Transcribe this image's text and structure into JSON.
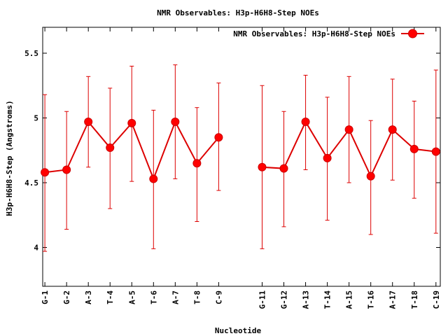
{
  "chart_data": {
    "type": "line",
    "title": "NMR Observables: H3p-H6H8-Step NOEs",
    "xlabel": "Nucleotide",
    "ylabel": "H3p-H6H8-Step (Angstroms)",
    "ylim": [
      3.7,
      5.7
    ],
    "yticks": [
      "4",
      "4.5",
      "5",
      "5.5"
    ],
    "xlim": [
      0.9,
      19.2
    ],
    "legend_position": "top-right",
    "grid": false,
    "categories": [
      "G-1",
      "G-2",
      "A-3",
      "T-4",
      "A-5",
      "T-6",
      "A-7",
      "T-8",
      "C-9",
      "G-11",
      "G-12",
      "A-13",
      "T-14",
      "A-15",
      "T-16",
      "A-17",
      "T-18",
      "C-19"
    ],
    "series": [
      {
        "name": "NMR Observables: H3p-H6H8-Step NOEs",
        "color": "#dd0000",
        "segments": [
          [
            {
              "x": 1,
              "y": 4.58,
              "err_low": 3.97,
              "err_high": 5.18
            },
            {
              "x": 2,
              "y": 4.6,
              "err_low": 4.14,
              "err_high": 5.05
            },
            {
              "x": 3,
              "y": 4.97,
              "err_low": 4.62,
              "err_high": 5.32
            },
            {
              "x": 4,
              "y": 4.77,
              "err_low": 4.3,
              "err_high": 5.23
            },
            {
              "x": 5,
              "y": 4.96,
              "err_low": 4.51,
              "err_high": 5.4
            },
            {
              "x": 6,
              "y": 4.53,
              "err_low": 3.99,
              "err_high": 5.06
            },
            {
              "x": 7,
              "y": 4.97,
              "err_low": 4.53,
              "err_high": 5.41
            },
            {
              "x": 8,
              "y": 4.65,
              "err_low": 4.2,
              "err_high": 5.08
            },
            {
              "x": 9,
              "y": 4.85,
              "err_low": 4.44,
              "err_high": 5.27
            }
          ],
          [
            {
              "x": 11,
              "y": 4.62,
              "err_low": 3.99,
              "err_high": 5.25
            },
            {
              "x": 12,
              "y": 4.61,
              "err_low": 4.16,
              "err_high": 5.05
            },
            {
              "x": 13,
              "y": 4.97,
              "err_low": 4.6,
              "err_high": 5.33
            },
            {
              "x": 14,
              "y": 4.69,
              "err_low": 4.21,
              "err_high": 5.16
            },
            {
              "x": 15,
              "y": 4.91,
              "err_low": 4.5,
              "err_high": 5.32
            },
            {
              "x": 16,
              "y": 4.55,
              "err_low": 4.1,
              "err_high": 4.98
            },
            {
              "x": 17,
              "y": 4.91,
              "err_low": 4.52,
              "err_high": 5.3
            },
            {
              "x": 18,
              "y": 4.76,
              "err_low": 4.38,
              "err_high": 5.13
            },
            {
              "x": 19,
              "y": 4.74,
              "err_low": 4.11,
              "err_high": 5.37
            }
          ]
        ]
      }
    ],
    "category_x": [
      1,
      2,
      3,
      4,
      5,
      6,
      7,
      8,
      9,
      11,
      12,
      13,
      14,
      15,
      16,
      17,
      18,
      19
    ]
  }
}
